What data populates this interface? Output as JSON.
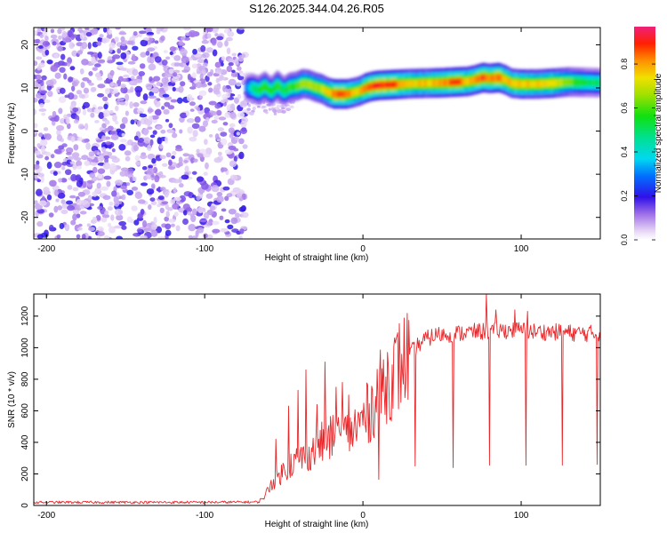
{
  "title": "S126.2025.344.04.26.R05",
  "chart_data": [
    {
      "type": "heatmap",
      "title": "S126.2025.344.04.26.R05",
      "xlabel": "Height of straight line (km)",
      "ylabel": "Frequency (Hz)",
      "xlim": [
        -208,
        150
      ],
      "ylim": [
        -25,
        24
      ],
      "xticks": [
        -200,
        -100,
        0,
        100
      ],
      "yticks": [
        -20,
        -10,
        0,
        10,
        20
      ],
      "colorbar": {
        "label": "Normalized spectral amplitude",
        "range": [
          0,
          0.97
        ],
        "ticks": [
          0.0,
          0.2,
          0.4,
          0.6,
          0.8
        ],
        "tick_labels": [
          "0.0",
          "0.2",
          "0.4",
          "0.6",
          "0.8"
        ]
      },
      "noise_region_x": [
        -208,
        -74
      ],
      "ridge": {
        "x": [
          -74,
          -70,
          -66,
          -62,
          -58,
          -54,
          -50,
          -46,
          -42,
          -38,
          -34,
          -30,
          -26,
          -22,
          -18,
          -14,
          -10,
          -6,
          -2,
          2,
          6,
          10,
          20,
          30,
          40,
          50,
          60,
          66,
          70,
          76,
          80,
          86,
          90,
          94,
          100,
          110,
          120,
          130,
          140,
          150
        ],
        "freq": [
          10,
          10,
          9.4,
          10.4,
          9.2,
          10.6,
          9.3,
          10.2,
          10.4,
          11.0,
          10.8,
          10.2,
          9.8,
          9.0,
          8.6,
          8.6,
          8.6,
          8.9,
          9.3,
          10.0,
          10.4,
          10.6,
          10.8,
          11.0,
          11.1,
          11.2,
          11.4,
          11.5,
          11.8,
          12.4,
          12.2,
          12.4,
          11.9,
          11.1,
          10.9,
          10.9,
          11.1,
          11.4,
          11.3,
          11.2
        ],
        "amp": [
          0.3,
          0.5,
          0.55,
          0.6,
          0.55,
          0.6,
          0.55,
          0.6,
          0.62,
          0.68,
          0.7,
          0.7,
          0.72,
          0.78,
          0.9,
          0.9,
          0.88,
          0.8,
          0.8,
          0.88,
          0.92,
          0.95,
          0.9,
          0.8,
          0.8,
          0.85,
          0.9,
          0.8,
          0.85,
          0.92,
          0.85,
          0.92,
          0.8,
          0.8,
          0.82,
          0.78,
          0.8,
          0.65,
          0.55,
          0.5
        ]
      }
    },
    {
      "type": "line",
      "xlabel": "Height of straight line (km)",
      "ylabel": "SNR (10 * v/v)",
      "xlim": [
        -208,
        150
      ],
      "ylim": [
        0,
        1340
      ],
      "xticks": [
        -200,
        -100,
        0,
        100
      ],
      "yticks": [
        0,
        200,
        400,
        600,
        800,
        1000,
        1200
      ],
      "color": "#e8272a",
      "envelope": {
        "x": [
          -208,
          -100,
          -66,
          -62,
          -58,
          -52,
          -46,
          -40,
          -34,
          -28,
          -22,
          -16,
          -10,
          -6,
          -2,
          2,
          6,
          10,
          16,
          22,
          28,
          34,
          40,
          46,
          52,
          60,
          70,
          80,
          90,
          100,
          110,
          120,
          130,
          140,
          150
        ],
        "snr": [
          20,
          20,
          22,
          60,
          140,
          200,
          260,
          300,
          330,
          380,
          420,
          430,
          460,
          480,
          520,
          570,
          630,
          720,
          800,
          870,
          940,
          1010,
          1055,
          1080,
          1085,
          1090,
          1100,
          1105,
          1110,
          1110,
          1100,
          1100,
          1095,
          1090,
          1090
        ]
      },
      "spikes": [
        {
          "x": -55,
          "snr": 420
        },
        {
          "x": -47,
          "snr": 630
        },
        {
          "x": -41,
          "snr": 730
        },
        {
          "x": -36,
          "snr": 860
        },
        {
          "x": -29,
          "snr": 640
        },
        {
          "x": -24,
          "snr": 910
        },
        {
          "x": -17,
          "snr": 750
        },
        {
          "x": -13,
          "snr": 780
        },
        {
          "x": -9,
          "snr": 700
        },
        {
          "x": 78,
          "snr": 1340
        },
        {
          "x": 84,
          "snr": 1240
        },
        {
          "x": 96,
          "snr": 1240
        },
        {
          "x": 104,
          "snr": 1230
        }
      ],
      "dips": [
        {
          "x": 10,
          "snr": 165
        },
        {
          "x": 33,
          "snr": 250
        },
        {
          "x": 57,
          "snr": 240
        },
        {
          "x": 80,
          "snr": 255
        },
        {
          "x": 103,
          "snr": 255
        },
        {
          "x": 126,
          "snr": 255
        },
        {
          "x": 148,
          "snr": 260
        }
      ]
    }
  ]
}
